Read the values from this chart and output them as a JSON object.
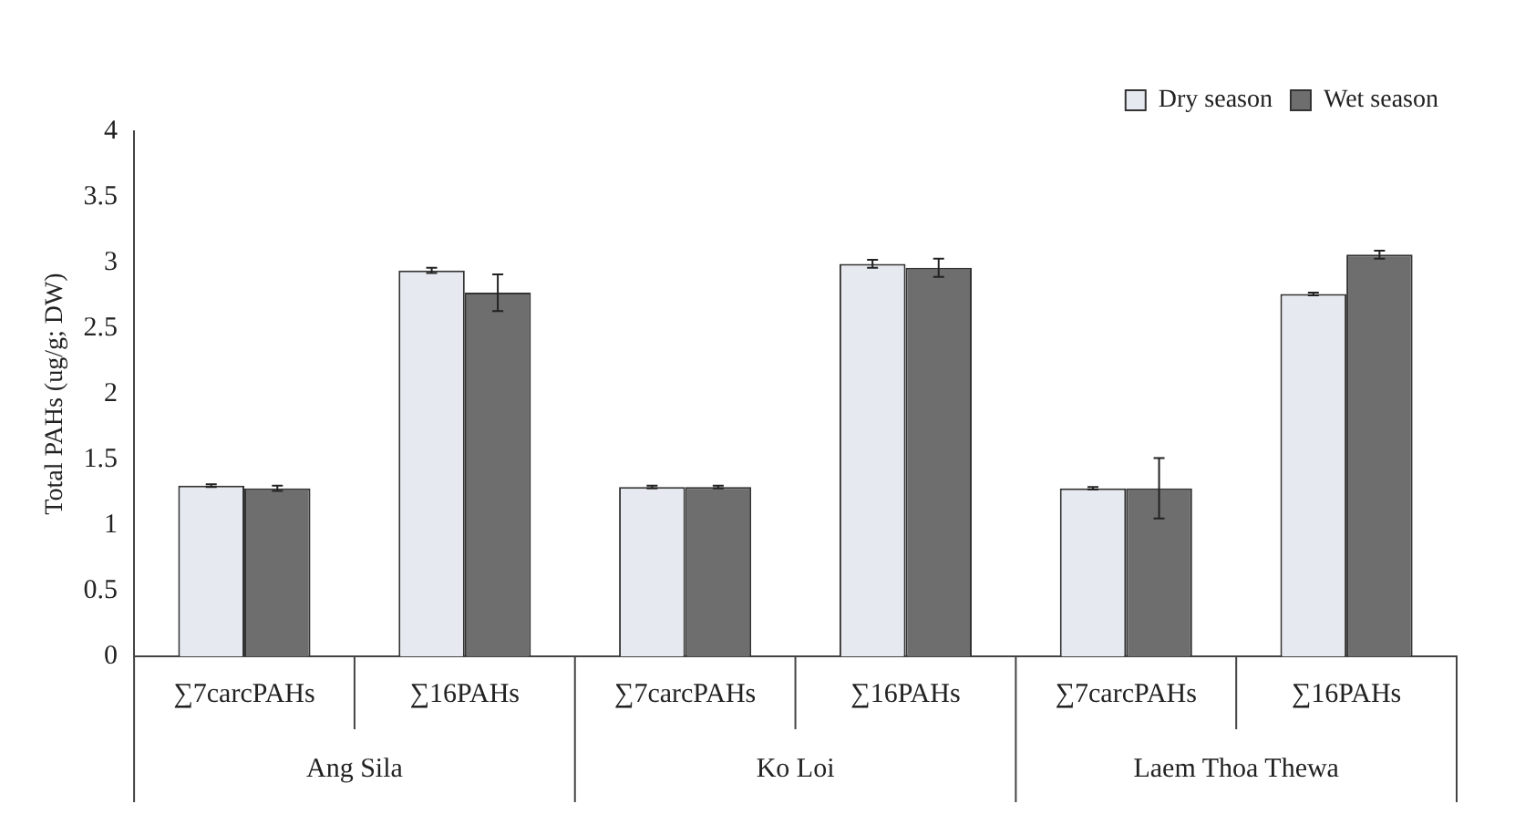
{
  "chart_data": {
    "type": "bar",
    "ylabel": "Total PAHs (ug/g; DW)",
    "categories": [
      "∑7carcPAHs",
      "∑16PAHs",
      "∑7carcPAHs",
      "∑16PAHs",
      "∑7carcPAHs",
      "∑16PAHs"
    ],
    "annotations": [
      "Ang Sila",
      "Ko Loi",
      "Laem Thoa Thewa"
    ],
    "series": [
      {
        "name": "Dry season",
        "color": "#e6eaf0",
        "values": [
          1.3,
          2.94,
          1.29,
          2.99,
          1.28,
          2.76
        ],
        "errors": [
          0.01,
          0.02,
          0.01,
          0.03,
          0.01,
          0.01
        ]
      },
      {
        "name": "Wet season",
        "color": "#6e6e6e",
        "values": [
          1.28,
          2.77,
          1.29,
          2.96,
          1.28,
          3.06
        ],
        "errors": [
          0.02,
          0.14,
          0.01,
          0.07,
          0.23,
          0.03
        ]
      }
    ],
    "ylim": [
      0,
      4
    ],
    "yticks": [
      0,
      0.5,
      1,
      1.5,
      2,
      2.5,
      3,
      3.5,
      4
    ],
    "grid": false,
    "legend": "top right"
  }
}
